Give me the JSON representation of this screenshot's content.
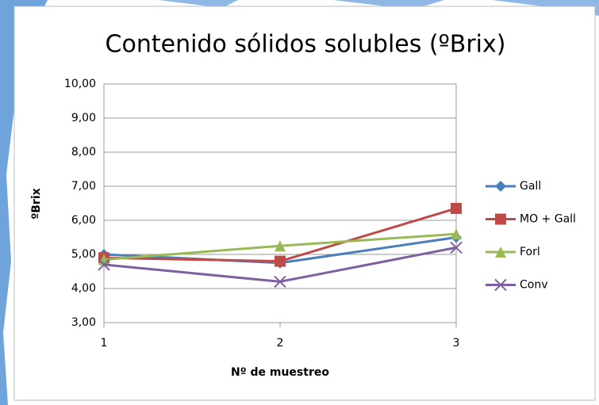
{
  "chart_data": {
    "type": "line",
    "title": "Contenido sólidos solubles (ºBrix)",
    "x_label": "Nº de muestreo",
    "y_label": "ºBrix",
    "x": [
      1,
      2,
      3
    ],
    "xlim": [
      1,
      3
    ],
    "xticks": [
      1,
      2,
      3
    ],
    "ylim": [
      3,
      10
    ],
    "yticks": [
      {
        "value": 3,
        "label": "3,00"
      },
      {
        "value": 4,
        "label": "4,00"
      },
      {
        "value": 5,
        "label": "5,00"
      },
      {
        "value": 6,
        "label": "6,00"
      },
      {
        "value": 7,
        "label": "7,00"
      },
      {
        "value": 8,
        "label": "8,00"
      },
      {
        "value": 9,
        "label": "9,00"
      },
      {
        "value": 10,
        "label": "10,00"
      }
    ],
    "grid": true,
    "legend": "right",
    "series": [
      {
        "name": "Gall",
        "color": "#4a7ebb",
        "marker": "diamond",
        "values": [
          5.0,
          4.75,
          5.5
        ]
      },
      {
        "name": "MO + Gall",
        "color": "#be4b48",
        "marker": "square",
        "values": [
          4.9,
          4.8,
          6.35
        ]
      },
      {
        "name": "Forl",
        "color": "#98b954",
        "marker": "triangle",
        "values": [
          4.85,
          5.25,
          5.6
        ]
      },
      {
        "name": "Conv",
        "color": "#7d60a0",
        "marker": "x",
        "values": [
          4.7,
          4.2,
          5.2
        ]
      }
    ]
  }
}
